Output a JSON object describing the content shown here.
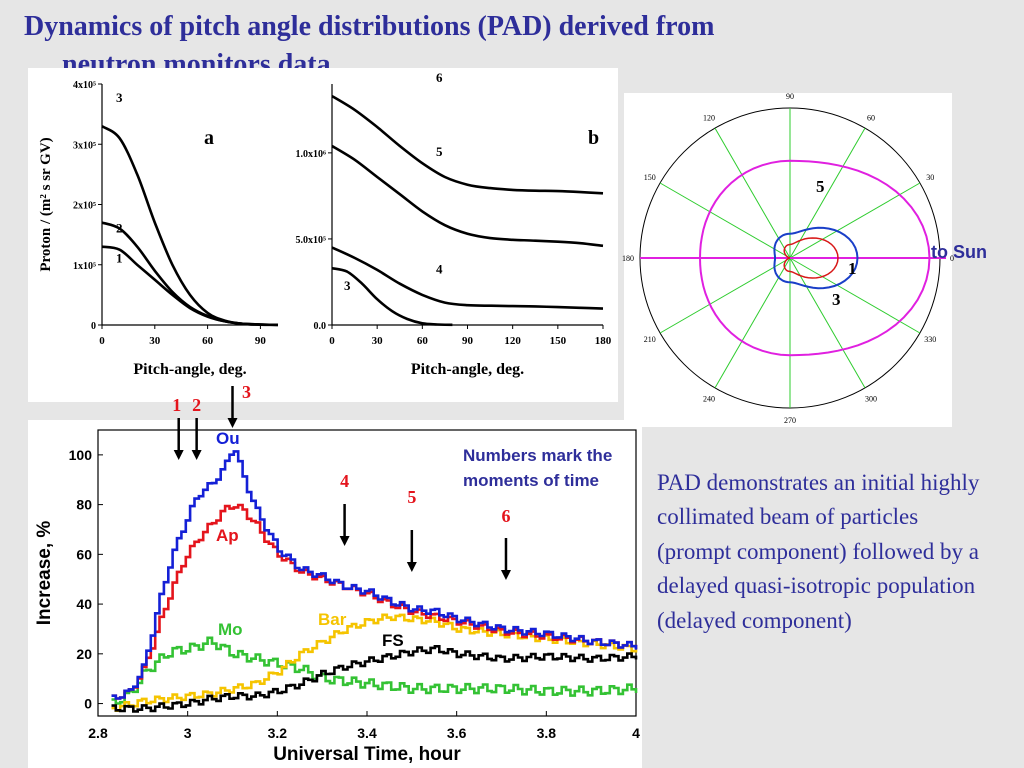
{
  "slide": {
    "title_line1": "Dynamics of pitch angle distributions (PAD) derived from",
    "title_line2": "neutron monitors data",
    "description": "PAD demonstrates an initial highly collimated beam of particles (prompt component) followed by a delayed quasi-isotropic population (delayed component)",
    "moments_note": "Numbers mark the moments of time",
    "to_sun_label": "to Sun"
  },
  "colors": {
    "title": "#2e2e9a",
    "Ou": "#1420d6",
    "Ap": "#e4141c",
    "Mo": "#34c234",
    "Bar": "#f5c400",
    "FS": "#000000",
    "polar_grid": "#2ecc2e",
    "polar_5": "#e020e0",
    "polar_3": "#1a3fc8",
    "polar_1": "#d81818",
    "marker": "#e4141c"
  },
  "chart_data": [
    {
      "id": "pad-a",
      "type": "line",
      "panel_label": "a",
      "xlabel": "Pitch-angle, deg.",
      "ylabel": "Proton / (m² s sr GV)",
      "xlim": [
        0,
        100
      ],
      "ylim": [
        0,
        400000
      ],
      "x_ticks": [
        0,
        30,
        60,
        90
      ],
      "y_ticks": [
        {
          "value": 0,
          "label": "0"
        },
        {
          "value": 100000,
          "label": "1x10⁵"
        },
        {
          "value": 200000,
          "label": "2x10⁵"
        },
        {
          "value": 300000,
          "label": "3x10⁵"
        },
        {
          "value": 400000,
          "label": "4x10⁵"
        }
      ],
      "series": [
        {
          "name": "1",
          "x": [
            0,
            10,
            20,
            30,
            40,
            50,
            60,
            70,
            80,
            90,
            100
          ],
          "y": [
            130000,
            125000,
            100000,
            75000,
            50000,
            28000,
            14000,
            6000,
            2000,
            800,
            300
          ]
        },
        {
          "name": "2",
          "x": [
            0,
            10,
            20,
            30,
            40,
            50,
            60,
            70,
            80,
            90,
            100
          ],
          "y": [
            170000,
            160000,
            130000,
            90000,
            55000,
            30000,
            15000,
            6000,
            2000,
            800,
            300
          ]
        },
        {
          "name": "3",
          "x": [
            0,
            10,
            20,
            30,
            40,
            50,
            60,
            70,
            80,
            90,
            100
          ],
          "y": [
            330000,
            310000,
            250000,
            170000,
            100000,
            50000,
            20000,
            7000,
            2000,
            500,
            200
          ]
        }
      ]
    },
    {
      "id": "pad-b",
      "type": "line",
      "panel_label": "b",
      "xlabel": "Pitch-angle, deg.",
      "xlim": [
        0,
        180
      ],
      "ylim": [
        0,
        1400000
      ],
      "x_ticks": [
        0,
        30,
        60,
        90,
        120,
        150,
        180
      ],
      "y_ticks": [
        {
          "value": 0,
          "label": "0.0"
        },
        {
          "value": 500000,
          "label": "5.0x10⁵"
        },
        {
          "value": 1000000,
          "label": "1.0x10⁶"
        }
      ],
      "series": [
        {
          "name": "3",
          "x": [
            0,
            10,
            20,
            30,
            40,
            50,
            60,
            70,
            80
          ],
          "y": [
            330000,
            310000,
            240000,
            150000,
            80000,
            35000,
            10000,
            3000,
            1000
          ]
        },
        {
          "name": "4",
          "x": [
            0,
            15,
            30,
            45,
            60,
            75,
            90,
            105,
            120,
            135,
            150,
            165,
            180
          ],
          "y": [
            450000,
            390000,
            320000,
            240000,
            175000,
            130000,
            115000,
            112000,
            110000,
            108000,
            104000,
            100000,
            95000
          ]
        },
        {
          "name": "5",
          "x": [
            0,
            15,
            30,
            45,
            60,
            75,
            90,
            105,
            120,
            135,
            150,
            165,
            180
          ],
          "y": [
            1040000,
            960000,
            860000,
            760000,
            660000,
            580000,
            530000,
            505000,
            495000,
            490000,
            484000,
            475000,
            460000
          ]
        },
        {
          "name": "6",
          "x": [
            0,
            15,
            30,
            45,
            60,
            75,
            90,
            105,
            120,
            135,
            150,
            165,
            180
          ],
          "y": [
            1330000,
            1250000,
            1150000,
            1040000,
            940000,
            860000,
            815000,
            795000,
            785000,
            780000,
            778000,
            772000,
            765000
          ]
        }
      ]
    },
    {
      "id": "pad-polar",
      "type": "line",
      "kind": "polar",
      "angle_labels": [
        "0",
        "30",
        "60",
        "90",
        "120",
        "150",
        "180",
        "210",
        "240",
        "270",
        "300",
        "330"
      ],
      "rlim": [
        0,
        1
      ],
      "series": [
        {
          "name": "5",
          "r_equator": 0.93,
          "r_poles": 0.72,
          "r_back": 0.6
        },
        {
          "name": "3",
          "r_equator": 0.45,
          "r_poles": 0.18,
          "r_back": 0.1
        },
        {
          "name": "1",
          "r_equator": 0.32,
          "r_poles": 0.1,
          "r_back": 0.0
        }
      ]
    },
    {
      "id": "time-profile",
      "type": "line",
      "step": true,
      "xlabel": "Universal Time, hour",
      "ylabel": "Increase, %",
      "xlim": [
        2.8,
        4.0
      ],
      "ylim": [
        -5,
        110
      ],
      "x_ticks": [
        {
          "value": 2.8,
          "label": "2.8"
        },
        {
          "value": 3.0,
          "label": "3"
        },
        {
          "value": 3.2,
          "label": "3.2"
        },
        {
          "value": 3.4,
          "label": "3.4"
        },
        {
          "value": 3.6,
          "label": "3.6"
        },
        {
          "value": 3.8,
          "label": "3.8"
        },
        {
          "value": 4.0,
          "label": "4"
        }
      ],
      "y_ticks": [
        0,
        20,
        40,
        60,
        80,
        100
      ],
      "series": [
        {
          "name": "Ou",
          "x": [
            2.83,
            2.87,
            2.9,
            2.93,
            2.96,
            2.99,
            3.02,
            3.05,
            3.08,
            3.1,
            3.12,
            3.15,
            3.18,
            3.2,
            3.25,
            3.3,
            3.35,
            3.4,
            3.45,
            3.5,
            3.55,
            3.6,
            3.7,
            3.8,
            3.9,
            4.0
          ],
          "y": [
            2,
            5,
            15,
            38,
            58,
            72,
            84,
            88,
            95,
            104,
            92,
            78,
            68,
            62,
            54,
            51,
            47,
            45,
            41,
            38,
            37,
            34,
            30,
            28,
            25,
            23
          ]
        },
        {
          "name": "Ap",
          "x": [
            2.83,
            2.87,
            2.9,
            2.93,
            2.96,
            2.99,
            3.02,
            3.05,
            3.08,
            3.1,
            3.12,
            3.15,
            3.18,
            3.2,
            3.25,
            3.3,
            3.35,
            3.4,
            3.45,
            3.5,
            3.55,
            3.6,
            3.7,
            3.8,
            3.9,
            4.0
          ],
          "y": [
            2,
            5,
            14,
            30,
            45,
            58,
            66,
            72,
            78,
            80,
            78,
            72,
            64,
            60,
            53,
            50,
            47,
            44,
            40,
            37,
            35,
            33,
            29,
            27,
            25,
            23
          ]
        },
        {
          "name": "Mo",
          "x": [
            2.83,
            2.87,
            2.9,
            2.93,
            2.96,
            3.0,
            3.05,
            3.1,
            3.15,
            3.2,
            3.25,
            3.3,
            3.35,
            3.4,
            3.45,
            3.5,
            3.6,
            3.7,
            3.8,
            3.9,
            4.0
          ],
          "y": [
            0,
            4,
            12,
            17,
            21,
            22,
            25,
            20,
            18,
            16,
            14,
            10,
            9,
            8,
            7,
            6,
            6,
            6,
            5,
            5,
            6
          ]
        },
        {
          "name": "Bar",
          "x": [
            2.83,
            2.9,
            3.0,
            3.05,
            3.1,
            3.15,
            3.2,
            3.25,
            3.3,
            3.35,
            3.4,
            3.45,
            3.5,
            3.55,
            3.6,
            3.7,
            3.8,
            3.9,
            4.0
          ],
          "y": [
            -2,
            1,
            3,
            4,
            6,
            8,
            13,
            20,
            25,
            30,
            33,
            35,
            34,
            33,
            30,
            28,
            26,
            24,
            22
          ]
        },
        {
          "name": "FS",
          "x": [
            2.83,
            2.9,
            3.0,
            3.05,
            3.1,
            3.15,
            3.2,
            3.25,
            3.3,
            3.35,
            3.4,
            3.45,
            3.5,
            3.55,
            3.6,
            3.7,
            3.8,
            3.9,
            4.0
          ],
          "y": [
            -2,
            -2,
            0,
            2,
            3,
            3,
            5,
            8,
            12,
            15,
            17,
            19,
            21,
            22,
            20,
            18,
            19,
            18,
            19
          ]
        }
      ],
      "moment_markers": [
        {
          "label": "1",
          "x": 2.98
        },
        {
          "label": "2",
          "x": 3.02
        },
        {
          "label": "3",
          "x": 3.1
        },
        {
          "label": "4",
          "x": 3.35
        },
        {
          "label": "5",
          "x": 3.5
        },
        {
          "label": "6",
          "x": 3.71
        }
      ]
    }
  ]
}
